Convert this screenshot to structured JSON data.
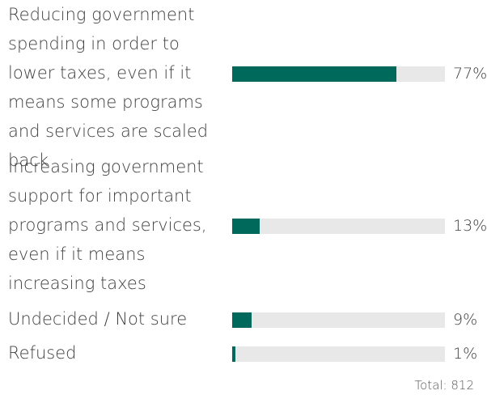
{
  "chart_data": {
    "type": "bar",
    "orientation": "horizontal",
    "categories": [
      "Reducing government spending in order to lower taxes, even if it means some programs and services are scaled back",
      "Increasing government support for important programs and services, even if it means increasing taxes",
      "Undecided / Not sure",
      "Refused"
    ],
    "values": [
      77,
      13,
      9,
      1
    ],
    "value_labels": [
      "77%",
      "13%",
      "9%",
      "1%"
    ],
    "xlim": [
      0,
      100
    ],
    "grid": false,
    "footnote": "Total: 812"
  },
  "colors": {
    "bar": "#00695c",
    "track": "#e8e8e8",
    "text": "#404040"
  }
}
